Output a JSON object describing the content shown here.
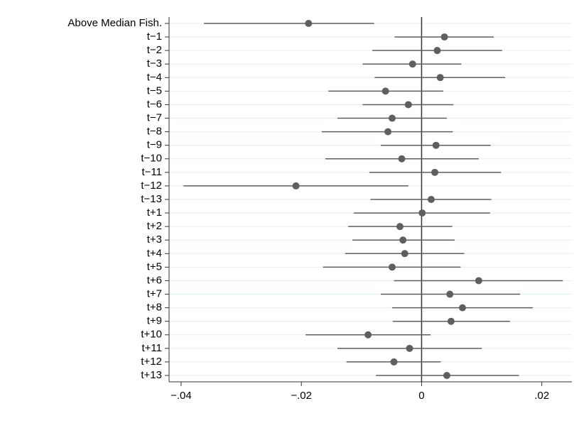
{
  "chart_data": {
    "type": "coefplot",
    "categories": [
      "Above Median Fish.",
      "t−1",
      "t−2",
      "t−3",
      "t−4",
      "t−5",
      "t−6",
      "t−7",
      "t−8",
      "t−9",
      "t−10",
      "t−11",
      "t−12",
      "t−13",
      "t+1",
      "t+2",
      "t+3",
      "t+4",
      "t+5",
      "t+6",
      "t+7",
      "t+8",
      "t+9",
      "t+10",
      "t+11",
      "t+12",
      "t+13"
    ],
    "values": [
      -0.0188,
      0.0038,
      0.0026,
      -0.0015,
      0.0031,
      -0.006,
      -0.0022,
      -0.0049,
      -0.0056,
      0.0024,
      -0.0033,
      0.0022,
      -0.0209,
      0.0016,
      0.0001,
      -0.0036,
      -0.0031,
      -0.0028,
      -0.0049,
      0.0095,
      0.0047,
      0.0068,
      0.0049,
      -0.0089,
      -0.002,
      -0.0046,
      0.0042
    ],
    "lower": [
      -0.0362,
      -0.0045,
      -0.0082,
      -0.0098,
      -0.0078,
      -0.0155,
      -0.0098,
      -0.014,
      -0.0166,
      -0.0068,
      -0.016,
      -0.0087,
      -0.0396,
      -0.0085,
      -0.0113,
      -0.0122,
      -0.0115,
      -0.0127,
      -0.0164,
      -0.0046,
      -0.0068,
      -0.0049,
      -0.0048,
      -0.0193,
      -0.014,
      -0.0125,
      -0.0076
    ],
    "upper": [
      -0.0079,
      0.012,
      0.0134,
      0.0066,
      0.0139,
      0.0036,
      0.0053,
      0.0042,
      0.0052,
      0.0115,
      0.0095,
      0.0132,
      -0.0022,
      0.0116,
      0.0114,
      0.0051,
      0.0055,
      0.0071,
      0.0065,
      0.0235,
      0.0164,
      0.0185,
      0.0147,
      0.0015,
      0.01,
      0.0032,
      0.0162
    ],
    "color": "#5f5f5f",
    "xlim": [
      -0.042,
      0.025
    ],
    "xticks": [
      {
        "value": -0.04,
        "label": "−.04"
      },
      {
        "value": -0.02,
        "label": "−.02"
      },
      0,
      {
        "value": 0.02,
        "label": ".02"
      }
    ],
    "reference_line": 0,
    "grid": true
  }
}
